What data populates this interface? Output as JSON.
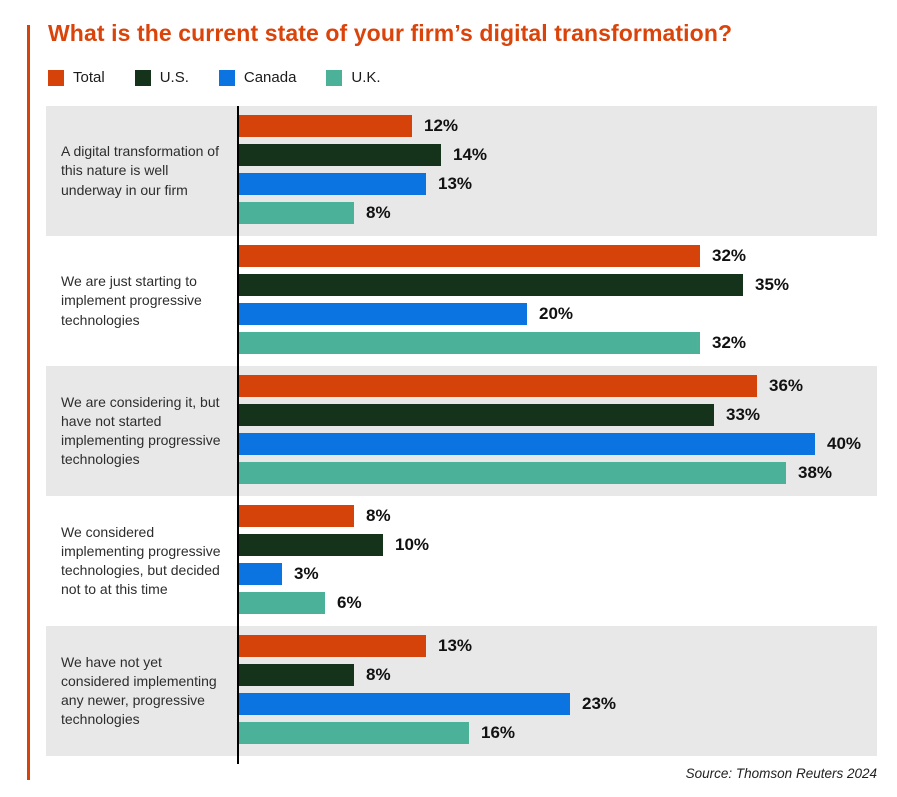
{
  "page": {
    "title": "What is the current state of your firm’s digital transformation?",
    "source": "Source: Thomson Reuters 2024",
    "accent_color": "#d5420a",
    "title_color": "#da430a",
    "row_alt_bg": "#e8e8e8",
    "axis_color": "#000000"
  },
  "chart_data": {
    "type": "bar",
    "orientation": "horizontal",
    "title": "What is the current state of your firm’s digital transformation?",
    "value_suffix": "%",
    "xlim": [
      0,
      40
    ],
    "legend_position": "top",
    "grid": false,
    "row_striping": true,
    "categories": [
      "A digital transformation of this nature is well underway in our firm",
      "We are just starting to implement progressive technologies",
      "We are considering it, but have not started implementing progressive technologies",
      "We considered implementing progressive technologies, but decided not to at this time",
      "We have not yet considered implementing any newer, progressive technologies"
    ],
    "series": [
      {
        "name": "Total",
        "color": "#d5420a",
        "values": [
          12,
          32,
          36,
          8,
          13
        ]
      },
      {
        "name": "U.S.",
        "color": "#15331b",
        "values": [
          14,
          35,
          33,
          10,
          8
        ]
      },
      {
        "name": "Canada",
        "color": "#0c74e0",
        "values": [
          13,
          20,
          40,
          3,
          23
        ]
      },
      {
        "name": "U.K.",
        "color": "#4cb199",
        "values": [
          8,
          32,
          38,
          6,
          16
        ]
      }
    ],
    "source": "Source: Thomson Reuters 2024"
  }
}
